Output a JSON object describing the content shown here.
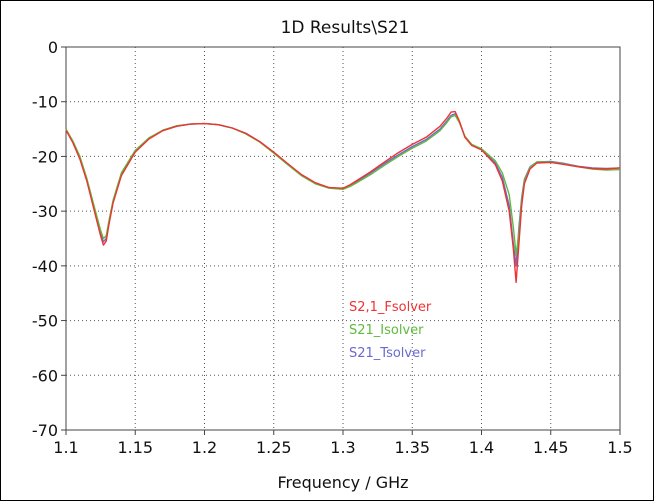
{
  "chart_data": {
    "type": "line",
    "title": "1D Results\\S21",
    "xlabel": "Frequency / GHz",
    "ylabel": "",
    "xlim": [
      1.1,
      1.5
    ],
    "ylim": [
      -70,
      0
    ],
    "xticks": [
      "1.1",
      "1.15",
      "1.2",
      "1.25",
      "1.3",
      "1.35",
      "1.4",
      "1.45",
      "1.5"
    ],
    "yticks": [
      "0",
      "-10",
      "-20",
      "-30",
      "-40",
      "-50",
      "-60",
      "-70"
    ],
    "grid": true,
    "legend_position": "center-right",
    "series": [
      {
        "name": "S2,1_Fsolver",
        "color": "#ee3333",
        "x": [
          1.1,
          1.105,
          1.11,
          1.115,
          1.12,
          1.125,
          1.127,
          1.129,
          1.131,
          1.134,
          1.14,
          1.15,
          1.16,
          1.17,
          1.18,
          1.19,
          1.2,
          1.21,
          1.22,
          1.23,
          1.24,
          1.25,
          1.26,
          1.27,
          1.28,
          1.29,
          1.3,
          1.305,
          1.31,
          1.32,
          1.33,
          1.34,
          1.35,
          1.36,
          1.37,
          1.375,
          1.378,
          1.381,
          1.384,
          1.388,
          1.393,
          1.4,
          1.41,
          1.415,
          1.42,
          1.423,
          1.425,
          1.427,
          1.429,
          1.431,
          1.435,
          1.44,
          1.45,
          1.46,
          1.47,
          1.48,
          1.49,
          1.5
        ],
        "y": [
          -15.2,
          -17.5,
          -20.5,
          -24.5,
          -29.5,
          -34.5,
          -36.2,
          -35.5,
          -32.5,
          -28.5,
          -23.5,
          -19.2,
          -16.8,
          -15.3,
          -14.5,
          -14.1,
          -14.0,
          -14.2,
          -14.8,
          -15.8,
          -17.3,
          -19.2,
          -21.3,
          -23.3,
          -24.8,
          -25.7,
          -25.8,
          -25.2,
          -24.4,
          -22.8,
          -21.0,
          -19.3,
          -17.8,
          -16.5,
          -14.5,
          -13.0,
          -11.9,
          -11.8,
          -13.5,
          -16.5,
          -18.0,
          -18.8,
          -21.5,
          -24.5,
          -30.0,
          -37.0,
          -43.0,
          -36.0,
          -29.0,
          -25.0,
          -22.3,
          -21.2,
          -21.1,
          -21.5,
          -21.9,
          -22.2,
          -22.3,
          -22.1
        ]
      },
      {
        "name": "S21_Isolver",
        "color": "#5fba3c",
        "x": [
          1.1,
          1.105,
          1.11,
          1.115,
          1.12,
          1.125,
          1.127,
          1.129,
          1.131,
          1.134,
          1.14,
          1.15,
          1.16,
          1.17,
          1.18,
          1.19,
          1.2,
          1.21,
          1.22,
          1.23,
          1.24,
          1.25,
          1.26,
          1.27,
          1.28,
          1.29,
          1.3,
          1.305,
          1.31,
          1.32,
          1.33,
          1.34,
          1.35,
          1.36,
          1.37,
          1.375,
          1.378,
          1.381,
          1.384,
          1.388,
          1.393,
          1.4,
          1.41,
          1.415,
          1.42,
          1.423,
          1.425,
          1.427,
          1.429,
          1.431,
          1.435,
          1.44,
          1.45,
          1.46,
          1.47,
          1.48,
          1.49,
          1.5
        ],
        "y": [
          -15.0,
          -17.2,
          -20.0,
          -24.0,
          -28.8,
          -33.5,
          -35.0,
          -34.5,
          -31.8,
          -28.0,
          -23.0,
          -18.9,
          -16.6,
          -15.2,
          -14.4,
          -14.1,
          -14.0,
          -14.2,
          -14.8,
          -15.9,
          -17.4,
          -19.4,
          -21.5,
          -23.5,
          -25.0,
          -25.8,
          -26.0,
          -25.5,
          -24.8,
          -23.3,
          -21.6,
          -20.0,
          -18.5,
          -17.2,
          -15.3,
          -13.8,
          -12.8,
          -12.5,
          -13.8,
          -16.3,
          -17.8,
          -18.6,
          -20.8,
          -23.0,
          -27.0,
          -33.0,
          -38.0,
          -34.0,
          -28.0,
          -24.5,
          -22.0,
          -21.0,
          -21.0,
          -21.4,
          -21.9,
          -22.3,
          -22.5,
          -22.4
        ]
      },
      {
        "name": "S21_Tsolver",
        "color": "#6a6ad0",
        "x": [
          1.1,
          1.105,
          1.11,
          1.115,
          1.12,
          1.125,
          1.127,
          1.129,
          1.131,
          1.134,
          1.14,
          1.15,
          1.16,
          1.17,
          1.18,
          1.19,
          1.2,
          1.21,
          1.22,
          1.23,
          1.24,
          1.25,
          1.26,
          1.27,
          1.28,
          1.29,
          1.3,
          1.305,
          1.31,
          1.32,
          1.33,
          1.34,
          1.35,
          1.36,
          1.37,
          1.375,
          1.378,
          1.381,
          1.384,
          1.388,
          1.393,
          1.4,
          1.41,
          1.415,
          1.42,
          1.423,
          1.425,
          1.427,
          1.429,
          1.431,
          1.435,
          1.44,
          1.45,
          1.46,
          1.47,
          1.48,
          1.49,
          1.5
        ],
        "y": [
          -15.1,
          -17.3,
          -20.2,
          -24.2,
          -29.0,
          -34.0,
          -35.6,
          -35.0,
          -32.2,
          -28.3,
          -23.3,
          -19.0,
          -16.7,
          -15.2,
          -14.4,
          -14.1,
          -14.0,
          -14.2,
          -14.8,
          -15.8,
          -17.3,
          -19.3,
          -21.4,
          -23.4,
          -24.9,
          -25.7,
          -25.9,
          -25.4,
          -24.6,
          -23.0,
          -21.3,
          -19.7,
          -18.2,
          -16.9,
          -15.0,
          -13.5,
          -12.5,
          -12.2,
          -13.6,
          -16.4,
          -17.9,
          -18.7,
          -21.2,
          -23.8,
          -29.0,
          -36.0,
          -40.0,
          -33.0,
          -27.5,
          -24.2,
          -21.9,
          -21.0,
          -20.9,
          -21.3,
          -21.8,
          -22.1,
          -22.2,
          -22.1
        ]
      }
    ]
  }
}
